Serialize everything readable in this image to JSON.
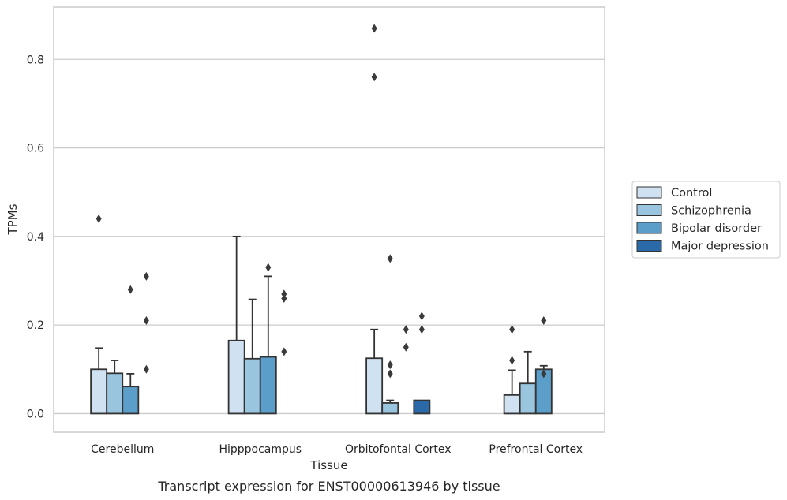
{
  "chart_data": {
    "type": "bar",
    "caption": "Transcript expression for ENST00000613946 by tissue",
    "xlabel": "Tissue",
    "ylabel": "TPMs",
    "ylim": [
      -0.042,
      0.918
    ],
    "yticks": [
      0.0,
      0.2,
      0.4,
      0.6,
      0.8
    ],
    "ytick_labels": [
      "0.0",
      "0.2",
      "0.4",
      "0.6",
      "0.8"
    ],
    "grid": "horizontal",
    "legend_position": "right",
    "categories": [
      "Cerebellum",
      "Hipppocampus",
      "Orbitofontal Cortex",
      "Prefrontal Cortex"
    ],
    "series": [
      {
        "name": "Control",
        "color": "#d0e1f2",
        "values": [
          0.1,
          0.165,
          0.125,
          0.042
        ],
        "error_upper": [
          0.148,
          0.4,
          0.19,
          0.098
        ],
        "outliers": [
          [
            0.44
          ],
          [],
          [
            0.87,
            0.76
          ],
          [
            0.19,
            0.12
          ]
        ]
      },
      {
        "name": "Schizophrenia",
        "color": "#9ac5de",
        "values": [
          0.091,
          0.124,
          0.024,
          0.068
        ],
        "error_upper": [
          0.12,
          0.258,
          0.03,
          0.14
        ],
        "outliers": [
          [],
          [],
          [
            0.35,
            0.11,
            0.09
          ],
          []
        ]
      },
      {
        "name": "Bipolar disorder",
        "color": "#5b9ec9",
        "values": [
          0.061,
          0.128,
          0.0,
          0.1
        ],
        "error_upper": [
          0.09,
          0.31,
          null,
          0.108
        ],
        "outliers": [
          [
            0.28
          ],
          [
            0.33
          ],
          [
            0.19,
            0.15
          ],
          [
            0.21,
            0.09
          ]
        ]
      },
      {
        "name": "Major depression",
        "color": "#2a6aa8",
        "values": [
          0.0,
          0.0,
          0.03,
          0.0
        ],
        "error_upper": [
          null,
          null,
          null,
          null
        ],
        "outliers": [
          [
            0.31,
            0.21,
            0.1
          ],
          [
            0.27,
            0.26,
            0.14
          ],
          [
            0.22,
            0.19
          ],
          []
        ]
      }
    ]
  }
}
